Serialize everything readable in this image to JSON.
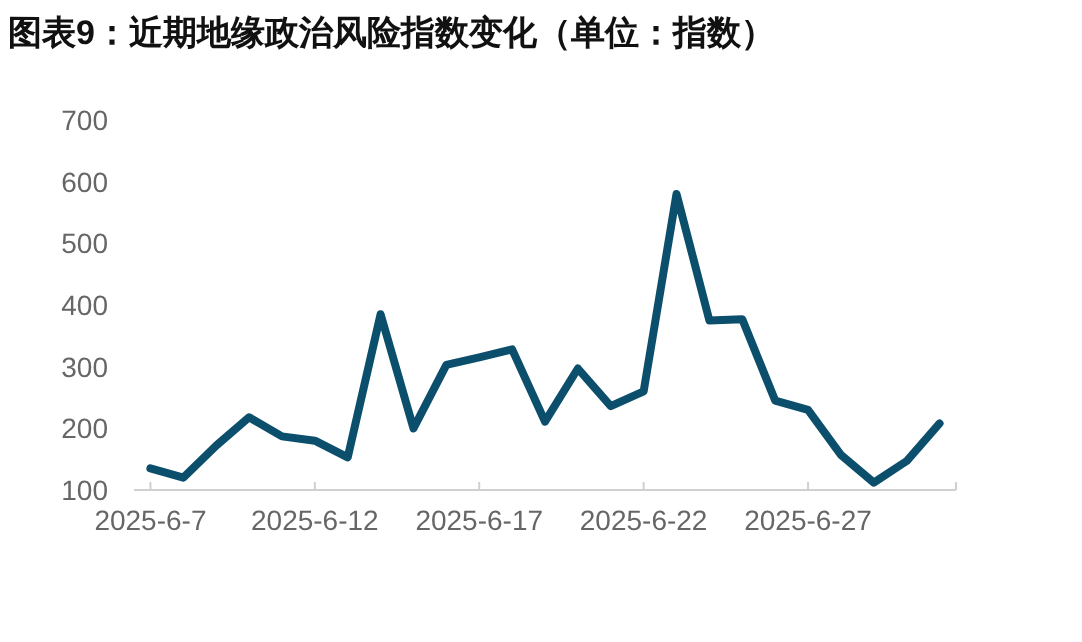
{
  "chart_data": {
    "type": "line",
    "title": "图表9：近期地缘政治风险指数变化（单位：指数）",
    "categories": [
      "2025-6-7",
      null,
      null,
      null,
      null,
      "2025-6-12",
      null,
      null,
      null,
      null,
      "2025-6-17",
      null,
      null,
      null,
      null,
      "2025-6-22",
      null,
      null,
      null,
      null,
      "2025-6-27",
      null,
      null,
      null,
      null
    ],
    "series": [
      {
        "color": "#0b4f6c",
        "values": [
          135,
          120,
          172,
          218,
          187,
          180,
          153,
          385,
          200,
          303,
          315,
          328,
          211,
          297,
          236,
          260,
          580,
          375,
          377,
          245,
          230,
          157,
          112,
          147,
          208
        ]
      }
    ],
    "ylim": [
      100,
      700
    ],
    "yticks": [
      100,
      200,
      300,
      400,
      500,
      600,
      700
    ],
    "grid": false,
    "marker": "none",
    "line_style": "solid"
  }
}
